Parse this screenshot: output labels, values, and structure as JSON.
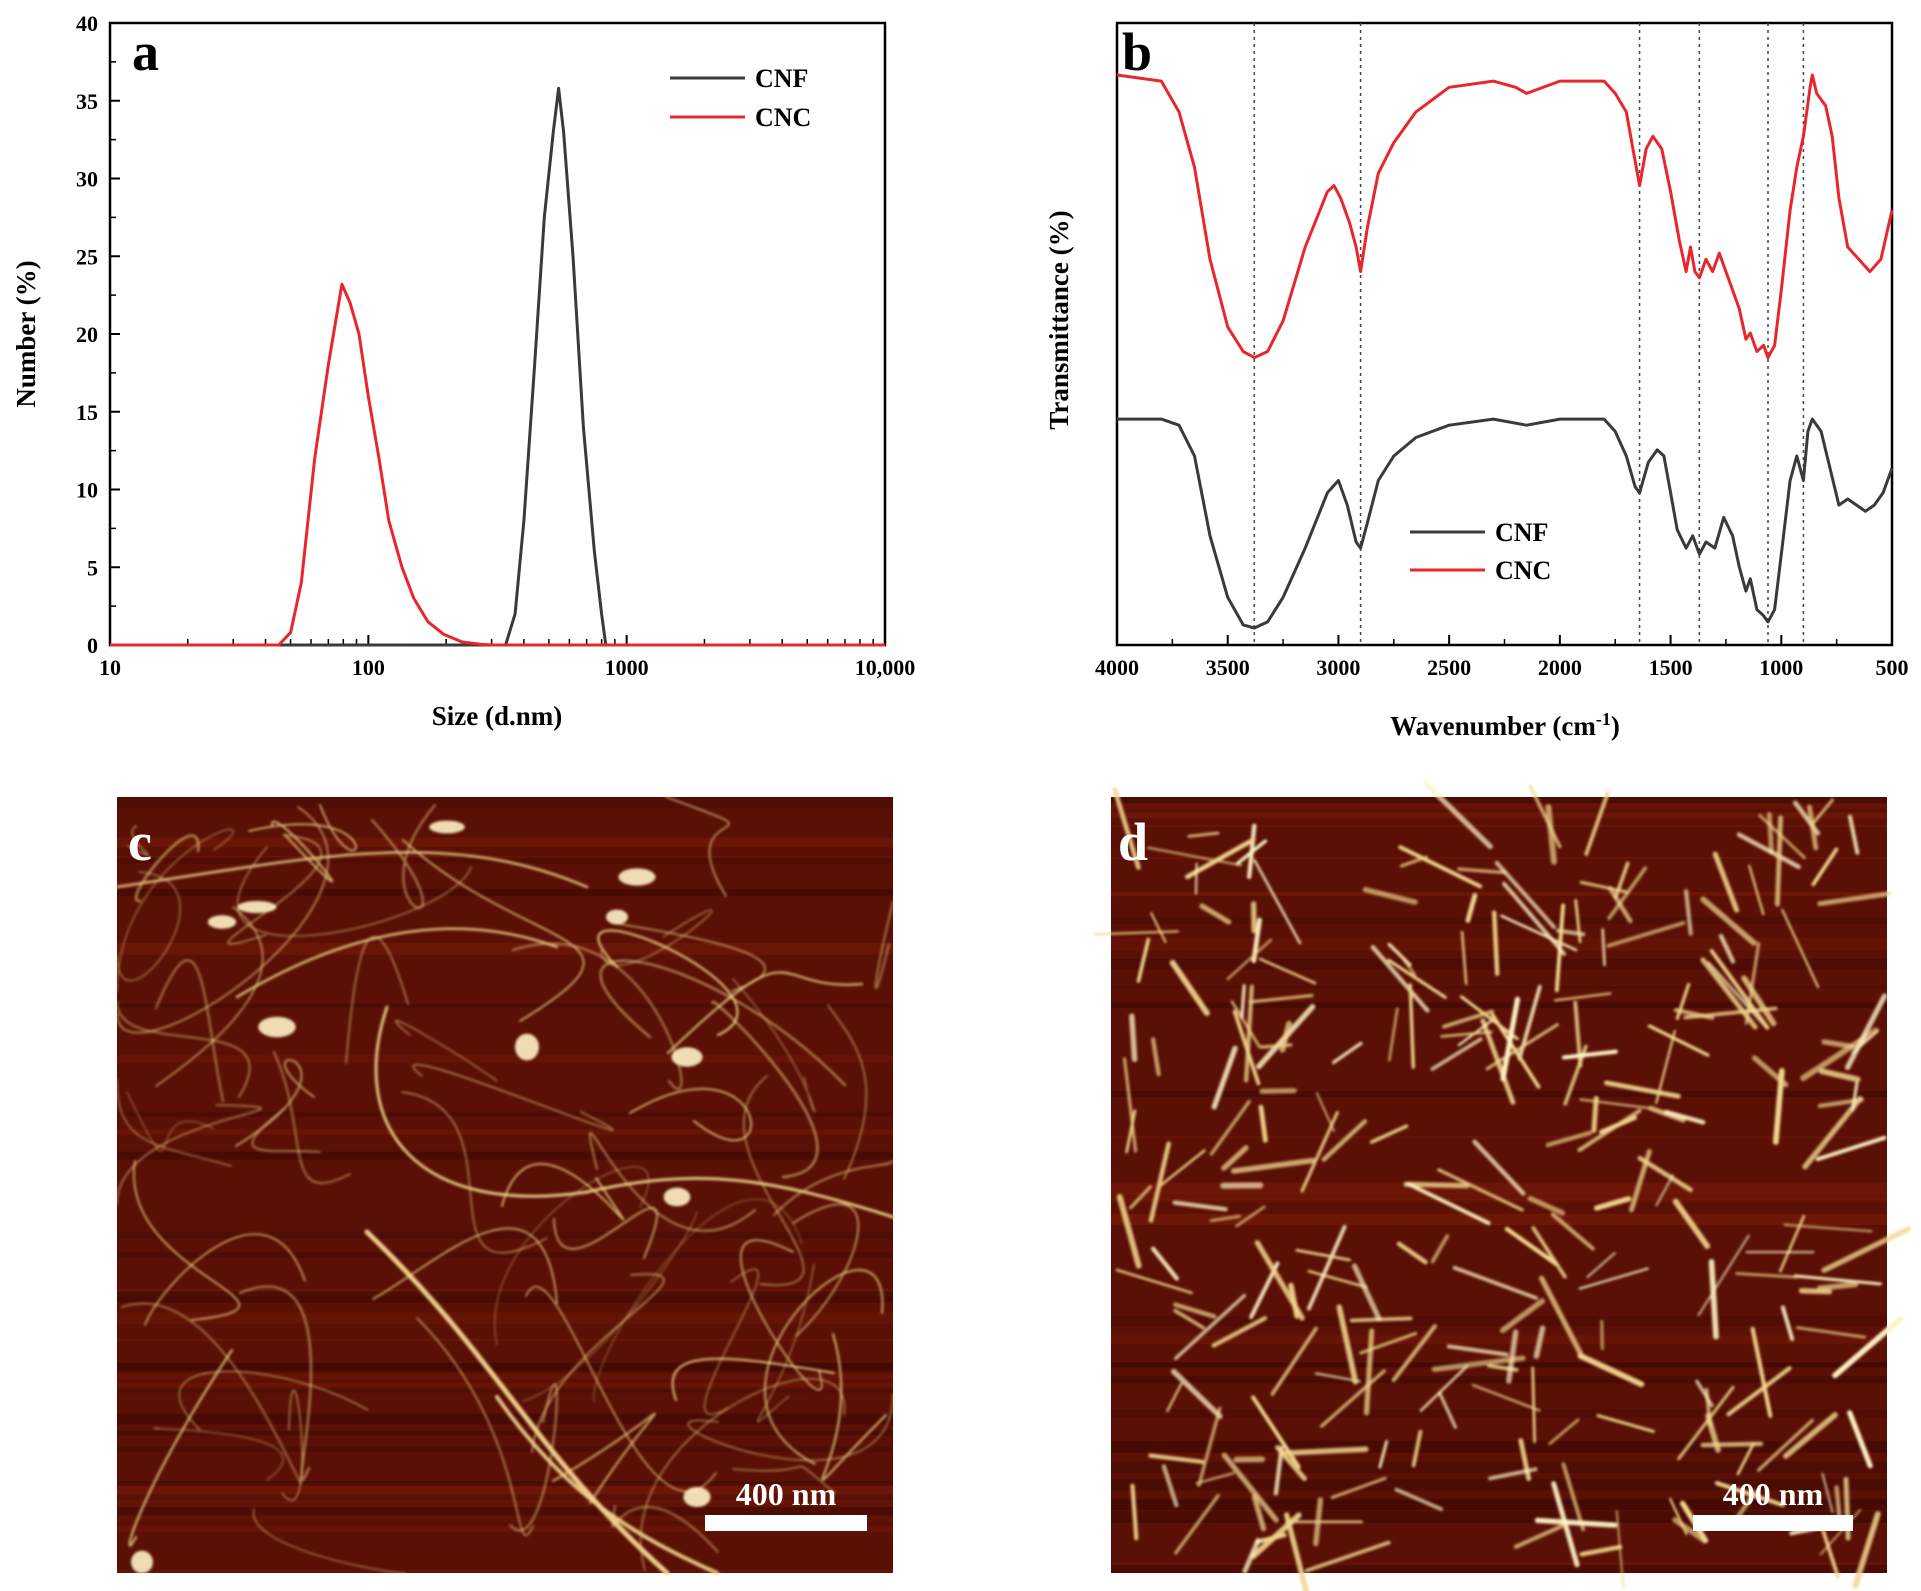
{
  "colors": {
    "CNF": "#3a3a3a",
    "CNC": "#e8262b",
    "afm_bg": "#5a1005",
    "afm_fiber": "#f3d58f"
  },
  "chart_data": [
    {
      "panel": "a",
      "type": "line",
      "xlabel": "Size (d.nm)",
      "ylabel": "Number (%)",
      "x_scale": "log",
      "xlim": [
        10,
        10000
      ],
      "ylim": [
        0,
        40
      ],
      "x_ticks": [
        10,
        100,
        1000,
        10000
      ],
      "x_tick_labels": [
        "10",
        "100",
        "1000",
        "10,000"
      ],
      "y_ticks": [
        0,
        5,
        10,
        15,
        20,
        25,
        30,
        35,
        40
      ],
      "y_tick_labels": [
        "0",
        "5",
        "10",
        "15",
        "20",
        "25",
        "30",
        "35",
        "40"
      ],
      "grid": false,
      "legend_position": "top-right",
      "series": [
        {
          "name": "CNF",
          "color_key": "CNF",
          "x": [
            10,
            340,
            370,
            400,
            440,
            480,
            520,
            545,
            570,
            620,
            680,
            750,
            800,
            830,
            10000
          ],
          "y": [
            0,
            0,
            2,
            8,
            18,
            27.5,
            33,
            35.8,
            33,
            25,
            14,
            6,
            2,
            0,
            0
          ]
        },
        {
          "name": "CNC",
          "color_key": "CNC",
          "x": [
            10,
            45,
            50,
            55,
            62,
            70,
            79,
            85,
            92,
            100,
            110,
            120,
            135,
            150,
            170,
            195,
            230,
            270,
            300,
            10000
          ],
          "y": [
            0,
            0,
            0.8,
            4,
            12,
            18,
            23.2,
            22,
            20,
            16,
            12,
            8,
            5,
            3,
            1.5,
            0.7,
            0.2,
            0.05,
            0,
            0
          ]
        }
      ]
    },
    {
      "panel": "b",
      "type": "line",
      "xlabel_main": "Wavenumber (cm",
      "xlabel_sup": "-1",
      "xlabel_end": ")",
      "ylabel": "Transmittance (%)",
      "xlim": [
        4000,
        500
      ],
      "x_reversed": true,
      "x_ticks": [
        4000,
        3500,
        3000,
        2500,
        2000,
        1500,
        1000,
        500
      ],
      "x_tick_labels": [
        "4000",
        "3500",
        "3000",
        "2500",
        "2000",
        "1500",
        "1000",
        "500"
      ],
      "y_ticks_shown": false,
      "ylim": [
        0,
        100
      ],
      "grid": false,
      "legend_position": "bottom-left",
      "reference_lines": [
        3380,
        2900,
        1640,
        1370,
        1060,
        900
      ],
      "series": [
        {
          "name": "CNF",
          "color_key": "CNF",
          "x": [
            4000,
            3800,
            3720,
            3650,
            3580,
            3500,
            3430,
            3380,
            3320,
            3250,
            3150,
            3050,
            3000,
            2960,
            2920,
            2900,
            2870,
            2820,
            2750,
            2650,
            2500,
            2300,
            2150,
            2000,
            1800,
            1750,
            1700,
            1660,
            1640,
            1600,
            1560,
            1530,
            1500,
            1470,
            1430,
            1400,
            1370,
            1340,
            1300,
            1260,
            1220,
            1190,
            1160,
            1140,
            1110,
            1080,
            1060,
            1030,
            1000,
            960,
            930,
            915,
            900,
            880,
            860,
            820,
            780,
            740,
            700,
            660,
            620,
            580,
            540,
            500
          ],
          "y": [
            34,
            34,
            33,
            28,
            15,
            5,
            0.5,
            0,
            1,
            5,
            13,
            22,
            24,
            20,
            14,
            13,
            17,
            24,
            28,
            31,
            33,
            34,
            33,
            34,
            34,
            32,
            28,
            23,
            22,
            27,
            29,
            28,
            22,
            16,
            13,
            15,
            12,
            14,
            13,
            18,
            15,
            10,
            6,
            8,
            3,
            2,
            1,
            3,
            12,
            24,
            28,
            26,
            24,
            32,
            34,
            32,
            26,
            20,
            21,
            20,
            19,
            20,
            22,
            26
          ]
        },
        {
          "name": "CNC",
          "color_key": "CNC",
          "x": [
            4000,
            3800,
            3720,
            3650,
            3580,
            3500,
            3430,
            3380,
            3320,
            3250,
            3150,
            3050,
            3020,
            2990,
            2950,
            2920,
            2900,
            2870,
            2820,
            2750,
            2650,
            2500,
            2300,
            2200,
            2150,
            2000,
            1800,
            1750,
            1700,
            1670,
            1640,
            1610,
            1580,
            1540,
            1500,
            1460,
            1430,
            1410,
            1390,
            1370,
            1340,
            1310,
            1280,
            1250,
            1220,
            1190,
            1160,
            1140,
            1110,
            1080,
            1060,
            1030,
            1000,
            960,
            930,
            900,
            870,
            860,
            840,
            800,
            770,
            740,
            700,
            650,
            600,
            550,
            500
          ],
          "y": [
            90,
            89,
            84,
            75,
            60,
            49,
            45,
            44,
            45,
            50,
            62,
            71,
            72,
            70,
            66,
            62,
            58,
            65,
            74,
            79,
            84,
            88,
            89,
            88,
            87,
            89,
            89,
            87,
            84,
            78,
            72,
            78,
            80,
            78,
            71,
            63,
            58,
            62,
            58,
            57,
            60,
            58,
            61,
            58,
            55,
            52,
            47,
            48,
            45,
            46,
            44,
            46,
            55,
            68,
            75,
            80,
            88,
            90,
            87,
            85,
            80,
            70,
            62,
            60,
            58,
            60,
            68
          ]
        }
      ]
    }
  ],
  "panels": {
    "a": {
      "letter": "a"
    },
    "b": {
      "letter": "b"
    },
    "c": {
      "letter": "c",
      "scale_label": "400 nm"
    },
    "d": {
      "letter": "d",
      "scale_label": "400 nm"
    }
  }
}
